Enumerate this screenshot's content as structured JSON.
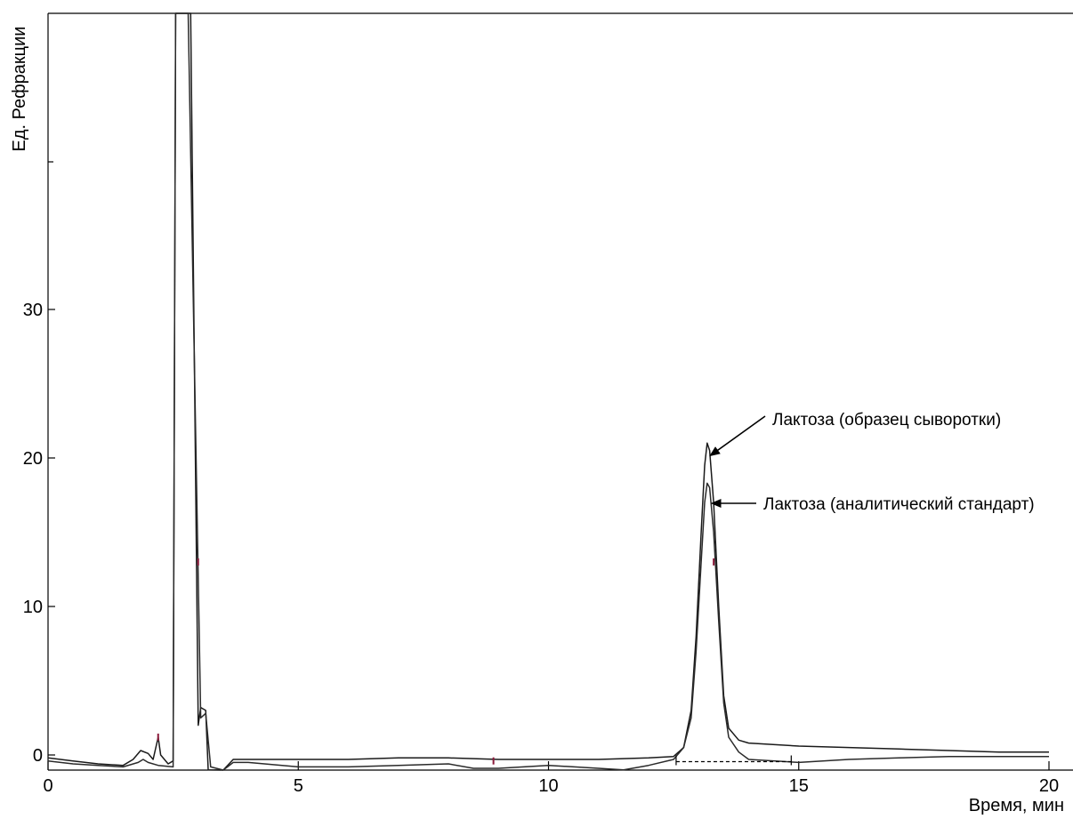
{
  "chart_data": {
    "type": "line",
    "title": "",
    "xlabel": "Время, мин",
    "ylabel": "Ед. Рефракции",
    "xlim": [
      0,
      20.5
    ],
    "ylim": [
      -1.2,
      50
    ],
    "x_ticks": [
      0,
      5,
      10,
      15,
      20
    ],
    "y_ticks": [
      0,
      10,
      20,
      30
    ],
    "grid": false,
    "legend": "none",
    "colors": {
      "sample": "#1a1a1a",
      "standard": "#2a2a2a",
      "accent": "#8b1a3a"
    },
    "series": [
      {
        "points": [
          [
            0,
            -0.2
          ],
          [
            0.5,
            -0.4
          ],
          [
            1.0,
            -0.6
          ],
          [
            1.5,
            -0.7
          ],
          [
            1.7,
            -0.3
          ],
          [
            1.85,
            0.3
          ],
          [
            2.0,
            0.1
          ],
          [
            2.1,
            -0.3
          ],
          [
            2.2,
            1.2
          ],
          [
            2.25,
            0.0
          ],
          [
            2.4,
            -0.6
          ],
          [
            2.5,
            -0.4
          ],
          [
            2.55,
            50
          ],
          [
            2.85,
            50
          ],
          [
            3.0,
            2.0
          ],
          [
            3.05,
            3.2
          ],
          [
            3.15,
            3.0
          ],
          [
            3.2,
            -1.0
          ],
          [
            3.5,
            -1.1
          ],
          [
            3.7,
            -0.3
          ],
          [
            4.0,
            -0.3
          ],
          [
            5.0,
            -0.3
          ],
          [
            6.0,
            -0.3
          ],
          [
            7.0,
            -0.2
          ],
          [
            8.0,
            -0.2
          ],
          [
            9.0,
            -0.3
          ],
          [
            10.0,
            -0.3
          ],
          [
            11.0,
            -0.3
          ],
          [
            12.0,
            -0.2
          ],
          [
            12.5,
            -0.1
          ],
          [
            12.7,
            0.5
          ],
          [
            12.85,
            3.0
          ],
          [
            12.95,
            8.0
          ],
          [
            13.05,
            15.0
          ],
          [
            13.12,
            19.5
          ],
          [
            13.17,
            21.0
          ],
          [
            13.22,
            20.5
          ],
          [
            13.3,
            17.0
          ],
          [
            13.4,
            10.0
          ],
          [
            13.5,
            4.0
          ],
          [
            13.6,
            1.8
          ],
          [
            13.8,
            1.0
          ],
          [
            14.0,
            0.8
          ],
          [
            15.0,
            0.6
          ],
          [
            16.0,
            0.5
          ],
          [
            17.0,
            0.4
          ],
          [
            18.0,
            0.3
          ],
          [
            19.0,
            0.2
          ],
          [
            20.0,
            0.2
          ]
        ]
      },
      {
        "points": [
          [
            0,
            -0.4
          ],
          [
            0.5,
            -0.6
          ],
          [
            1.0,
            -0.7
          ],
          [
            1.5,
            -0.8
          ],
          [
            1.8,
            -0.5
          ],
          [
            1.9,
            -0.3
          ],
          [
            2.0,
            -0.5
          ],
          [
            2.2,
            -0.7
          ],
          [
            2.5,
            -0.8
          ],
          [
            2.55,
            50
          ],
          [
            2.8,
            50
          ],
          [
            3.05,
            2.5
          ],
          [
            3.15,
            2.8
          ],
          [
            3.25,
            -0.8
          ],
          [
            3.5,
            -1.1
          ],
          [
            3.7,
            -0.5
          ],
          [
            4.0,
            -0.5
          ],
          [
            5.0,
            -0.8
          ],
          [
            6.0,
            -0.8
          ],
          [
            7.0,
            -0.7
          ],
          [
            8.0,
            -0.6
          ],
          [
            8.5,
            -0.9
          ],
          [
            9.0,
            -0.9
          ],
          [
            10.0,
            -0.7
          ],
          [
            11.0,
            -0.9
          ],
          [
            11.5,
            -1.0
          ],
          [
            12.0,
            -0.7
          ],
          [
            12.5,
            -0.3
          ],
          [
            12.7,
            0.5
          ],
          [
            12.85,
            2.5
          ],
          [
            12.95,
            7.0
          ],
          [
            13.05,
            13.0
          ],
          [
            13.12,
            17.0
          ],
          [
            13.17,
            18.3
          ],
          [
            13.22,
            18.0
          ],
          [
            13.3,
            15.0
          ],
          [
            13.4,
            9.0
          ],
          [
            13.5,
            3.5
          ],
          [
            13.6,
            1.2
          ],
          [
            13.8,
            0.2
          ],
          [
            14.0,
            -0.3
          ],
          [
            15.0,
            -0.5
          ],
          [
            16.0,
            -0.3
          ],
          [
            17.0,
            -0.2
          ],
          [
            18.0,
            -0.1
          ],
          [
            19.0,
            -0.1
          ],
          [
            20.0,
            -0.1
          ]
        ]
      }
    ],
    "baseline": {
      "from": 12.55,
      "to": 14.85,
      "y": -0.45
    },
    "annotations": [
      {
        "text": "Лактоза (образец сыворотки)",
        "target_x": 13.17,
        "target_y": 20.0
      },
      {
        "text": "Лактоза (аналитический стандарт)",
        "target_x": 13.22,
        "target_y": 17.0
      }
    ]
  }
}
